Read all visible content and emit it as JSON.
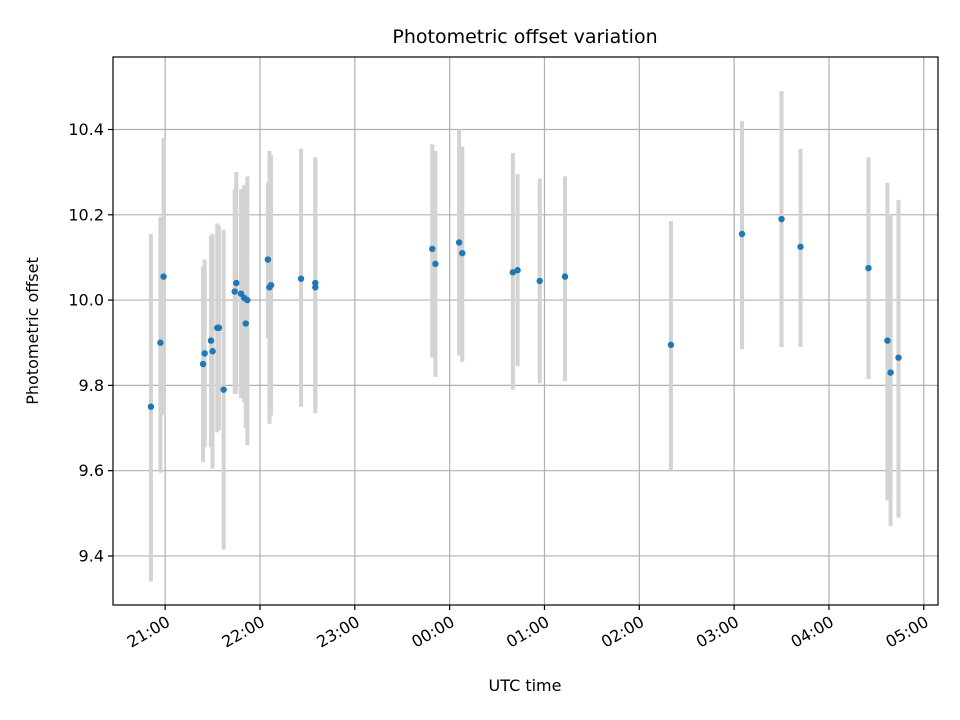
{
  "chart_data": {
    "type": "scatter",
    "title": "Photometric offset variation",
    "xlabel": "UTC time",
    "ylabel": "Photometric offset",
    "x_axis_type": "time",
    "x_reference_date": "",
    "xlim": [
      "20:27",
      "05:09"
    ],
    "ylim": [
      9.285,
      10.57
    ],
    "x_ticks": [
      "21:00",
      "22:00",
      "23:00",
      "00:00",
      "01:00",
      "02:00",
      "03:00",
      "04:00",
      "05:00"
    ],
    "y_ticks": [
      9.4,
      9.6,
      9.8,
      10.0,
      10.2,
      10.4
    ],
    "y_tick_labels": [
      "9.4",
      "9.6",
      "9.8",
      "10.0",
      "10.2",
      "10.4"
    ],
    "grid": true,
    "marker_color": "#1f77b4",
    "errorbar_color": "#d3d3d3",
    "points": [
      {
        "x": "20:51",
        "y": 9.75,
        "ylow": 9.34,
        "yhigh": 10.155
      },
      {
        "x": "20:57",
        "y": 9.9,
        "ylow": 9.595,
        "yhigh": 10.195
      },
      {
        "x": "20:59",
        "y": 10.055,
        "ylow": 9.73,
        "yhigh": 10.38
      },
      {
        "x": "21:24",
        "y": 9.85,
        "ylow": 9.62,
        "yhigh": 10.08
      },
      {
        "x": "21:25",
        "y": 9.875,
        "ylow": 9.655,
        "yhigh": 10.095
      },
      {
        "x": "21:29",
        "y": 9.905,
        "ylow": 9.655,
        "yhigh": 10.15
      },
      {
        "x": "21:30",
        "y": 9.88,
        "ylow": 9.605,
        "yhigh": 10.155
      },
      {
        "x": "21:33",
        "y": 9.935,
        "ylow": 9.69,
        "yhigh": 10.18
      },
      {
        "x": "21:34",
        "y": 9.935,
        "ylow": 9.695,
        "yhigh": 10.175
      },
      {
        "x": "21:37",
        "y": 9.79,
        "ylow": 9.415,
        "yhigh": 10.165
      },
      {
        "x": "21:44",
        "y": 10.02,
        "ylow": 9.78,
        "yhigh": 10.26
      },
      {
        "x": "21:45",
        "y": 10.04,
        "ylow": 9.78,
        "yhigh": 10.3
      },
      {
        "x": "21:48",
        "y": 10.015,
        "ylow": 9.77,
        "yhigh": 10.26
      },
      {
        "x": "21:50",
        "y": 10.005,
        "ylow": 9.76,
        "yhigh": 10.27
      },
      {
        "x": "21:52",
        "y": 10.0,
        "ylow": 9.66,
        "yhigh": 10.29
      },
      {
        "x": "21:51",
        "y": 9.945,
        "ylow": 9.7,
        "yhigh": 10.185
      },
      {
        "x": "22:05",
        "y": 10.095,
        "ylow": 9.91,
        "yhigh": 10.275
      },
      {
        "x": "22:06",
        "y": 10.03,
        "ylow": 9.71,
        "yhigh": 10.35
      },
      {
        "x": "22:07",
        "y": 10.035,
        "ylow": 9.73,
        "yhigh": 10.34
      },
      {
        "x": "22:26",
        "y": 10.05,
        "ylow": 9.75,
        "yhigh": 10.355
      },
      {
        "x": "22:35",
        "y": 10.04,
        "ylow": 9.745,
        "yhigh": 10.335
      },
      {
        "x": "22:35",
        "y": 10.03,
        "ylow": 9.735,
        "yhigh": 10.33
      },
      {
        "x": "23:49",
        "y": 10.12,
        "ylow": 9.865,
        "yhigh": 10.365
      },
      {
        "x": "23:51",
        "y": 10.085,
        "ylow": 9.82,
        "yhigh": 10.35
      },
      {
        "x": "00:06",
        "y": 10.135,
        "ylow": 9.87,
        "yhigh": 10.4
      },
      {
        "x": "00:08",
        "y": 10.11,
        "ylow": 9.855,
        "yhigh": 10.36
      },
      {
        "x": "00:40",
        "y": 10.065,
        "ylow": 9.79,
        "yhigh": 10.345
      },
      {
        "x": "00:43",
        "y": 10.07,
        "ylow": 9.845,
        "yhigh": 10.295
      },
      {
        "x": "00:57",
        "y": 10.045,
        "ylow": 9.805,
        "yhigh": 10.285
      },
      {
        "x": "01:13",
        "y": 10.055,
        "ylow": 9.81,
        "yhigh": 10.29
      },
      {
        "x": "02:20",
        "y": 9.895,
        "ylow": 9.6,
        "yhigh": 10.185
      },
      {
        "x": "03:05",
        "y": 10.155,
        "ylow": 9.885,
        "yhigh": 10.42
      },
      {
        "x": "03:30",
        "y": 10.19,
        "ylow": 9.89,
        "yhigh": 10.49
      },
      {
        "x": "03:42",
        "y": 10.125,
        "ylow": 9.89,
        "yhigh": 10.355
      },
      {
        "x": "04:25",
        "y": 10.075,
        "ylow": 9.815,
        "yhigh": 10.335
      },
      {
        "x": "04:37",
        "y": 9.905,
        "ylow": 9.53,
        "yhigh": 10.275
      },
      {
        "x": "04:39",
        "y": 9.83,
        "ylow": 9.47,
        "yhigh": 10.2
      },
      {
        "x": "04:44",
        "y": 9.865,
        "ylow": 9.49,
        "yhigh": 10.235
      }
    ]
  }
}
